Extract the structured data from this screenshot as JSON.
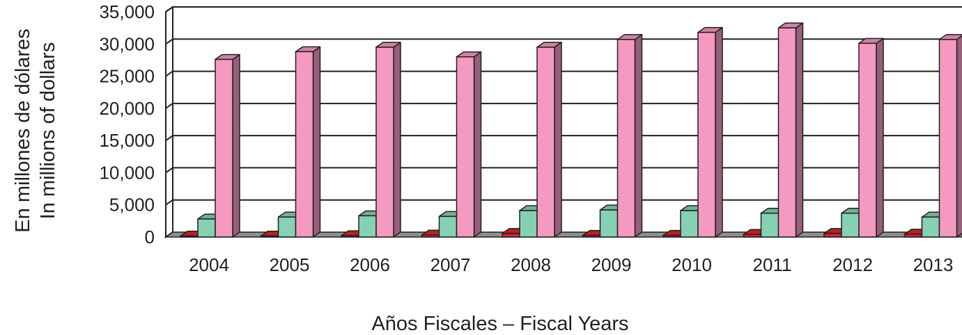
{
  "chart_data": {
    "type": "bar",
    "style": "3d-clustered-column",
    "categories": [
      "2004",
      "2005",
      "2006",
      "2007",
      "2008",
      "2009",
      "2010",
      "2011",
      "2012",
      "2013"
    ],
    "series": [
      {
        "color": "#d7262b",
        "values": [
          150,
          150,
          200,
          300,
          550,
          250,
          250,
          400,
          550,
          450
        ]
      },
      {
        "color": "#86d0b3",
        "values": [
          2800,
          3100,
          3300,
          3200,
          4100,
          4200,
          4100,
          3700,
          3700,
          3100
        ]
      },
      {
        "color": "#f49ac1",
        "values": [
          27600,
          28800,
          29500,
          28000,
          29500,
          30700,
          31800,
          32500,
          30100,
          30700
        ]
      }
    ],
    "ylim": [
      0,
      35000
    ],
    "yticks": [
      "0",
      "5,000",
      "10,000",
      "15,000",
      "20,000",
      "25,000",
      "30,000",
      "35,000"
    ],
    "ylabel": [
      "En millones de dólares",
      "In millions of dollars"
    ],
    "xlabel": "Años Fiscales – Fiscal Years",
    "grid": true,
    "legend": "none"
  }
}
